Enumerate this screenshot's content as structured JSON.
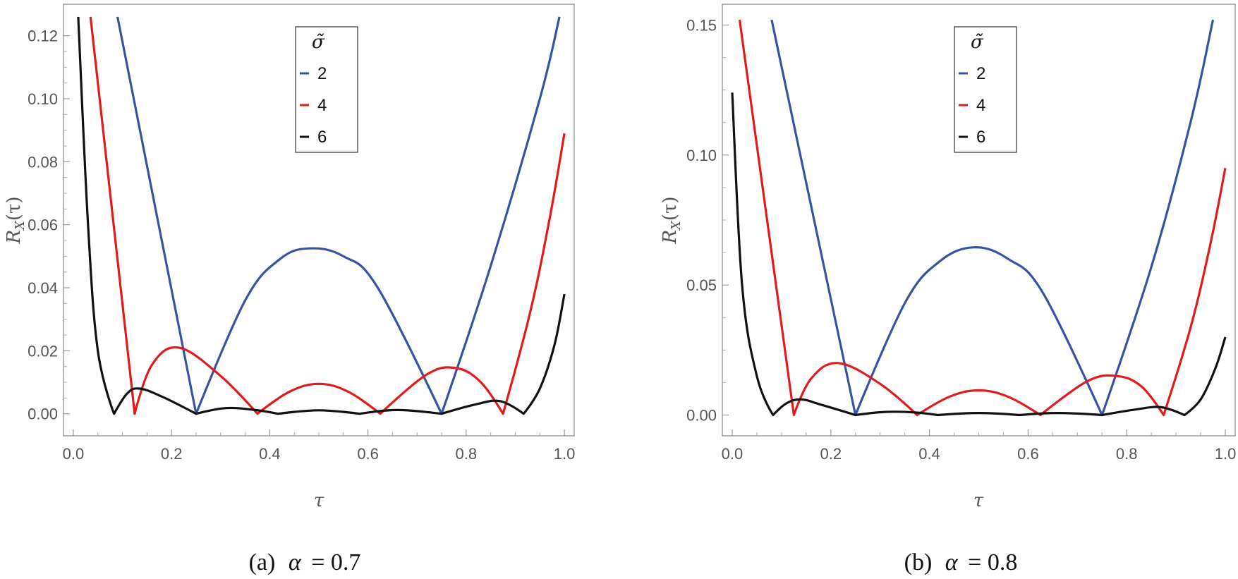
{
  "chart_data": [
    {
      "type": "line",
      "panel": "a",
      "caption": "(a)  α = 0.7",
      "caption_label": "(a)",
      "caption_symbol": "α",
      "caption_value": "= 0.7",
      "xlabel": "τ",
      "ylabel": "R_X(τ)",
      "ylabel_main": "R",
      "ylabel_sub": "X",
      "ylabel_arg": "(τ)",
      "xlim": [
        -0.02,
        1.02
      ],
      "ylim": [
        -0.007,
        0.13
      ],
      "xticks": [
        "0.0",
        "0.2",
        "0.4",
        "0.6",
        "0.8",
        "1.0"
      ],
      "xtick_values": [
        0.0,
        0.2,
        0.4,
        0.6,
        0.8,
        1.0
      ],
      "yticks": [
        "0.00",
        "0.02",
        "0.04",
        "0.06",
        "0.08",
        "0.10",
        "0.12"
      ],
      "ytick_values": [
        0.0,
        0.02,
        0.04,
        0.06,
        0.08,
        0.1,
        0.12
      ],
      "legend": {
        "title": "σ̃",
        "position": "top-center"
      },
      "series": [
        {
          "name": "2",
          "color": "#3953a4",
          "x": [
            0.09,
            0.25,
            0.35,
            0.42,
            0.48,
            0.55,
            0.62,
            0.75,
            0.85,
            0.95,
            0.99
          ],
          "y": [
            0.126,
            0.0,
            0.036,
            0.049,
            0.0525,
            0.05,
            0.04,
            0.0,
            0.047,
            0.1,
            0.126
          ]
        },
        {
          "name": "4",
          "color": "#e31a1c",
          "x": [
            0.035,
            0.125,
            0.16,
            0.215,
            0.3,
            0.375,
            0.44,
            0.5,
            0.56,
            0.625,
            0.72,
            0.78,
            0.83,
            0.875,
            0.93,
            0.97,
            1.0
          ],
          "y": [
            0.126,
            0.0,
            0.0155,
            0.021,
            0.012,
            0.0,
            0.007,
            0.0095,
            0.007,
            0.0,
            0.0125,
            0.0145,
            0.01,
            0.0,
            0.032,
            0.062,
            0.089
          ]
        },
        {
          "name": "6",
          "color": "#111111",
          "x": [
            0.01,
            0.03,
            0.05,
            0.083,
            0.11,
            0.135,
            0.18,
            0.25,
            0.31,
            0.37,
            0.417,
            0.5,
            0.583,
            0.66,
            0.75,
            0.82,
            0.87,
            0.917,
            0.95,
            0.98,
            1.0
          ],
          "y": [
            0.126,
            0.06,
            0.02,
            0.0,
            0.0065,
            0.008,
            0.0055,
            0.0,
            0.0018,
            0.0012,
            0.0,
            0.0011,
            0.0,
            0.0012,
            0.0,
            0.003,
            0.004,
            0.0,
            0.008,
            0.022,
            0.038
          ]
        }
      ]
    },
    {
      "type": "line",
      "panel": "b",
      "caption": "(b)  α = 0.8",
      "caption_label": "(b)",
      "caption_symbol": "α",
      "caption_value": "= 0.8",
      "xlabel": "τ",
      "ylabel": "R_X(τ)",
      "ylabel_main": "R",
      "ylabel_sub": "X",
      "ylabel_arg": "(τ)",
      "xlim": [
        -0.02,
        1.02
      ],
      "ylim": [
        -0.008,
        0.158
      ],
      "xticks": [
        "0.0",
        "0.2",
        "0.4",
        "0.6",
        "0.8",
        "1.0"
      ],
      "xtick_values": [
        0.0,
        0.2,
        0.4,
        0.6,
        0.8,
        1.0
      ],
      "yticks": [
        "0.00",
        "0.05",
        "0.10",
        "0.15"
      ],
      "ytick_values": [
        0.0,
        0.05,
        0.1,
        0.15
      ],
      "legend": {
        "title": "σ̃",
        "position": "top-center"
      },
      "series": [
        {
          "name": "2",
          "color": "#3953a4",
          "x": [
            0.08,
            0.25,
            0.35,
            0.42,
            0.49,
            0.56,
            0.63,
            0.75,
            0.85,
            0.93,
            0.975
          ],
          "y": [
            0.152,
            0.0,
            0.043,
            0.059,
            0.0645,
            0.06,
            0.047,
            0.0,
            0.057,
            0.113,
            0.152
          ]
        },
        {
          "name": "4",
          "color": "#e31a1c",
          "x": [
            0.015,
            0.125,
            0.16,
            0.215,
            0.3,
            0.375,
            0.44,
            0.5,
            0.56,
            0.625,
            0.72,
            0.78,
            0.83,
            0.875,
            0.93,
            0.97,
            1.0
          ],
          "y": [
            0.152,
            0.0,
            0.014,
            0.02,
            0.012,
            0.0,
            0.007,
            0.0095,
            0.007,
            0.0,
            0.013,
            0.015,
            0.011,
            0.0,
            0.034,
            0.066,
            0.095
          ]
        },
        {
          "name": "6",
          "color": "#111111",
          "x": [
            0.0,
            0.02,
            0.05,
            0.083,
            0.11,
            0.14,
            0.18,
            0.25,
            0.31,
            0.37,
            0.417,
            0.5,
            0.583,
            0.66,
            0.75,
            0.82,
            0.87,
            0.917,
            0.95,
            0.98,
            1.0
          ],
          "y": [
            0.124,
            0.05,
            0.015,
            0.0,
            0.0045,
            0.006,
            0.004,
            0.0,
            0.0012,
            0.001,
            0.0,
            0.0008,
            0.0,
            0.0008,
            0.0,
            0.0022,
            0.003,
            0.0,
            0.006,
            0.018,
            0.03
          ]
        }
      ]
    }
  ]
}
